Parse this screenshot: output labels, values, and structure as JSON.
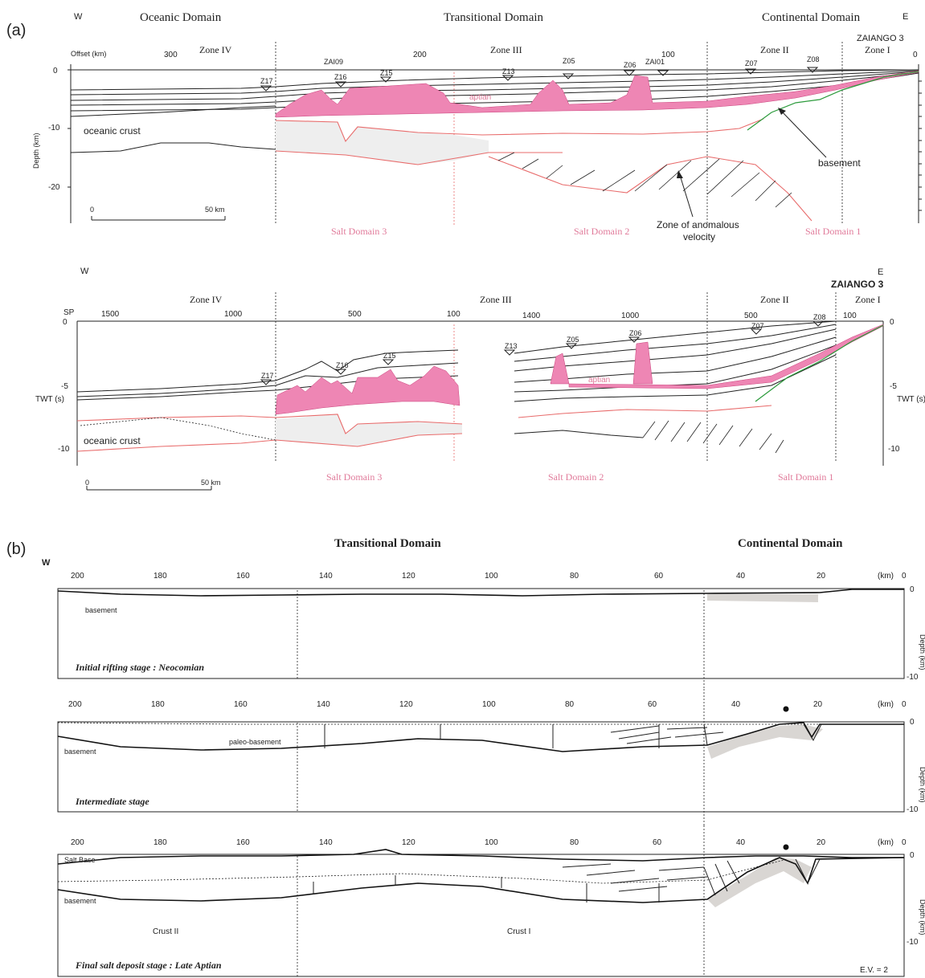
{
  "panels": {
    "a_label": "(a)",
    "b_label": "(b)"
  },
  "compass": {
    "west": "W",
    "east": "E"
  },
  "top_section": {
    "domains": [
      "Oceanic Domain",
      "Transitional Domain",
      "Continental Domain"
    ],
    "zones": [
      "Zone IV",
      "Zone III",
      "Zone II",
      "Zone I"
    ],
    "well": "ZAIANGO 3",
    "x_axis_label": "Offset (km)",
    "x_ticks": [
      "300",
      "200",
      "100",
      "0"
    ],
    "y_axis_label": "Depth (km)",
    "y_ticks": [
      "0",
      "-10",
      "-20"
    ],
    "stations": [
      "Z17",
      "ZAI09",
      "Z16",
      "Z15",
      "Z13",
      "Z05",
      "Z06",
      "ZAI01",
      "Z07",
      "Z08"
    ],
    "labels": {
      "oceanic_crust": "oceanic crust",
      "aptian": "aptian",
      "basement": "basement",
      "anomalous_1": "Zone of anomalous",
      "anomalous_2": "velocity"
    },
    "scale": {
      "start": "0",
      "end": "50 km"
    },
    "salt_domains": [
      "Salt Domain 3",
      "Salt Domain 2",
      "Salt Domain 1"
    ]
  },
  "middle_section": {
    "zones": [
      "Zone IV",
      "Zone III",
      "Zone II",
      "Zone I"
    ],
    "well": "ZAIANGO 3",
    "sp_label": "SP",
    "sp_ticks": [
      "1500",
      "1000",
      "500",
      "100",
      "1400",
      "1000",
      "500",
      "100"
    ],
    "y_axis_label": "TWT (s)",
    "y_ticks": [
      "0",
      "-5",
      "-10"
    ],
    "stations": [
      "Z17",
      "Z16",
      "Z15",
      "Z13",
      "Z05",
      "Z06",
      "Z07",
      "Z08"
    ],
    "labels": {
      "oceanic_crust": "oceanic crust",
      "aptian": "aptian"
    },
    "scale": {
      "start": "0",
      "end": "50 km"
    },
    "salt_domains": [
      "Salt Domain 3",
      "Salt Domain 2",
      "Salt Domain 1"
    ]
  },
  "bottom_section": {
    "domains": [
      "Transitional Domain",
      "Continental Domain"
    ],
    "x_ticks": [
      "200",
      "180",
      "160",
      "140",
      "120",
      "100",
      "80",
      "60",
      "40",
      "20",
      "0"
    ],
    "x_unit": "(km)",
    "y_axis_label": "Depth (km)",
    "y_ticks": [
      "0",
      "-10"
    ],
    "stages": [
      {
        "title": "Initial rifting stage : Neocomian",
        "labels": [
          "basement"
        ]
      },
      {
        "title": "Intermediate stage",
        "labels": [
          "basement",
          "paleo-basement"
        ]
      },
      {
        "title": "Final salt deposit stage : Late Aptian",
        "labels": [
          "Salt Base",
          "basement",
          "Crust II",
          "Crust I"
        ]
      }
    ],
    "ev": "E.V. = 2"
  }
}
